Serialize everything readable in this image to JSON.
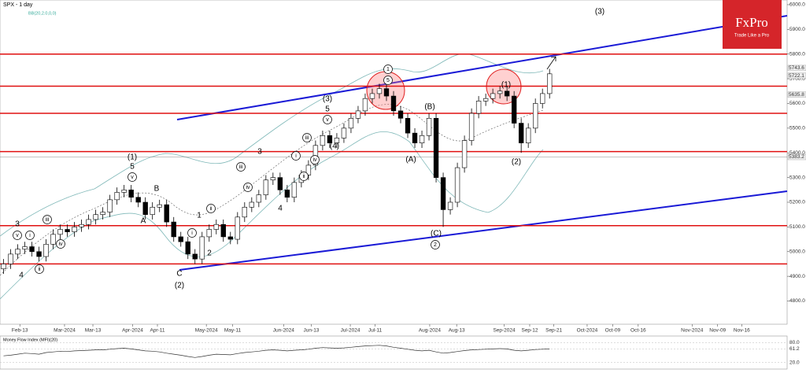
{
  "chart_data": {
    "type": "candlestick",
    "title": "SPX - 1 day",
    "subtitle": "BB(20,2.0,0,0)",
    "logo": {
      "brand": "FxPro",
      "tagline": "Trade Like a Pro"
    },
    "xlim": [
      0,
      111
    ],
    "xticks": [
      {
        "value": 2.8,
        "label": "Feb-13"
      },
      {
        "value": 9.1,
        "label": "Mar-2024"
      },
      {
        "value": 13.1,
        "label": "Mar-13"
      },
      {
        "value": 18.7,
        "label": "Apr-2024"
      },
      {
        "value": 22.2,
        "label": "Apr-11"
      },
      {
        "value": 29.1,
        "label": "May-2024"
      },
      {
        "value": 32.8,
        "label": "May-11"
      },
      {
        "value": 40,
        "label": "Jun-2024"
      },
      {
        "value": 43.9,
        "label": "Jun-13"
      },
      {
        "value": 49.4,
        "label": "Jul-2024"
      },
      {
        "value": 52.9,
        "label": "Jul-11"
      },
      {
        "value": 60.6,
        "label": "Aug-2024"
      },
      {
        "value": 64.4,
        "label": "Aug-13"
      },
      {
        "value": 71.1,
        "label": "Sep-2024"
      },
      {
        "value": 74.7,
        "label": "Sep-12"
      },
      {
        "value": 78.1,
        "label": "Sep-21"
      },
      {
        "value": 82.8,
        "label": "Oct-2024"
      },
      {
        "value": 86.4,
        "label": "Oct-09"
      },
      {
        "value": 90,
        "label": "Oct-16"
      },
      {
        "value": 97.6,
        "label": "Nov-2024"
      },
      {
        "value": 101.2,
        "label": "Nov-09"
      },
      {
        "value": 104.6,
        "label": "Nov-16"
      }
    ],
    "ylim": [
      4706,
      6019
    ],
    "yticks": [
      {
        "value": 4800,
        "label": "4800.0"
      },
      {
        "value": 4900,
        "label": "4900.0"
      },
      {
        "value": 5000,
        "label": "5000.0"
      },
      {
        "value": 5100,
        "label": "5100.0"
      },
      {
        "value": 5200,
        "label": "5200.0"
      },
      {
        "value": 5300,
        "label": "5300.0"
      },
      {
        "value": 5400,
        "label": "5400.0"
      },
      {
        "value": 5500,
        "label": "5500.0"
      },
      {
        "value": 5600,
        "label": "5600.0"
      },
      {
        "value": 5700,
        "label": "5700.0"
      },
      {
        "value": 5800,
        "label": "5800.0"
      },
      {
        "value": 5900,
        "label": "5900.0"
      },
      {
        "value": 6000,
        "label": "6000.0"
      }
    ],
    "price_tags": [
      5743.6,
      5722.1,
      5635.8,
      5383.2
    ],
    "levels": [
      5800,
      5670,
      5560,
      5405,
      5105,
      4950
    ],
    "open": [
      4930,
      4950,
      4990,
      5010,
      5020,
      5000,
      4980,
      5030,
      5070,
      5090,
      5080,
      5100,
      5110,
      5130,
      5150,
      5160,
      5210,
      5240,
      5250,
      5220,
      5200,
      5150,
      5180,
      5190,
      5120,
      5060,
      5040,
      4990,
      4970,
      5060,
      5090,
      5110,
      5060,
      5050,
      5140,
      5180,
      5200,
      5230,
      5290,
      5300,
      5250,
      5220,
      5280,
      5310,
      5350,
      5430,
      5470,
      5440,
      5460,
      5500,
      5540,
      5570,
      5620,
      5640,
      5660,
      5630,
      5570,
      5540,
      5480,
      5440,
      5470,
      5540,
      5300,
      5170,
      5200,
      5340,
      5450,
      5560,
      5610,
      5620,
      5640,
      5650,
      5630,
      5520,
      5440,
      5500,
      5600,
      5640
    ],
    "high": [
      4970,
      5010,
      5030,
      5040,
      5040,
      5020,
      5050,
      5090,
      5110,
      5110,
      5120,
      5130,
      5150,
      5170,
      5180,
      5230,
      5260,
      5270,
      5270,
      5240,
      5220,
      5200,
      5210,
      5210,
      5140,
      5080,
      5060,
      5010,
      5080,
      5110,
      5130,
      5130,
      5080,
      5160,
      5200,
      5220,
      5250,
      5310,
      5320,
      5320,
      5270,
      5300,
      5330,
      5370,
      5450,
      5490,
      5490,
      5480,
      5520,
      5560,
      5590,
      5640,
      5660,
      5680,
      5680,
      5650,
      5590,
      5560,
      5500,
      5490,
      5560,
      5560,
      5320,
      5220,
      5360,
      5470,
      5580,
      5630,
      5640,
      5660,
      5670,
      5670,
      5650,
      5540,
      5520,
      5620,
      5660,
      5740
    ],
    "low": [
      4910,
      4930,
      4970,
      4990,
      4980,
      4960,
      4960,
      5010,
      5050,
      5060,
      5060,
      5080,
      5090,
      5110,
      5130,
      5140,
      5190,
      5220,
      5200,
      5180,
      5130,
      5130,
      5160,
      5100,
      5040,
      5020,
      4970,
      4950,
      4950,
      5040,
      5070,
      5040,
      5030,
      5030,
      5120,
      5160,
      5180,
      5210,
      5270,
      5230,
      5200,
      5200,
      5260,
      5290,
      5330,
      5410,
      5420,
      5420,
      5440,
      5480,
      5520,
      5550,
      5600,
      5620,
      5610,
      5550,
      5520,
      5460,
      5420,
      5420,
      5450,
      5280,
      5100,
      5150,
      5180,
      5320,
      5430,
      5540,
      5590,
      5600,
      5620,
      5610,
      5500,
      5400,
      5420,
      5480,
      5580,
      5620
    ],
    "close": [
      4950,
      4990,
      5010,
      5020,
      5000,
      4980,
      5030,
      5070,
      5090,
      5080,
      5100,
      5110,
      5130,
      5150,
      5160,
      5210,
      5240,
      5250,
      5220,
      5200,
      5150,
      5180,
      5190,
      5120,
      5060,
      5040,
      4990,
      4970,
      5060,
      5090,
      5110,
      5060,
      5050,
      5140,
      5180,
      5200,
      5230,
      5290,
      5300,
      5250,
      5220,
      5280,
      5310,
      5350,
      5430,
      5470,
      5440,
      5460,
      5500,
      5540,
      5570,
      5620,
      5640,
      5660,
      5630,
      5570,
      5540,
      5480,
      5440,
      5470,
      5540,
      5300,
      5170,
      5200,
      5340,
      5450,
      5560,
      5610,
      5620,
      5640,
      5650,
      5630,
      5520,
      5440,
      5500,
      5600,
      5640,
      5720
    ],
    "annotations": [
      "3",
      "v",
      "4",
      "i",
      "ii",
      "iii",
      "iv",
      "(1)",
      "5",
      "v",
      "A",
      "B",
      "C",
      "(2)",
      "1",
      "2",
      "i",
      "ii",
      "iii",
      "iv",
      "3",
      "4",
      "(3)",
      "5",
      "v",
      "(4)",
      "i",
      "ii",
      "iii",
      "iv",
      "1",
      "5",
      "(A)",
      "(B)",
      "(C)",
      "2",
      "(1)",
      "(2)",
      "(3)"
    ],
    "indicator": {
      "title": "Money Flow Index (MFI)(20)",
      "ylim": [
        0,
        100
      ],
      "yticks": [
        {
          "value": 80,
          "label": "80.0"
        },
        {
          "value": 61.2,
          "label": "61.2"
        },
        {
          "value": 20,
          "label": "20.0"
        }
      ],
      "values": [
        40,
        42,
        45,
        48,
        47,
        45,
        50,
        52,
        54,
        53,
        55,
        56,
        57,
        58,
        58,
        60,
        62,
        63,
        61,
        58,
        55,
        54,
        52,
        48,
        45,
        42,
        38,
        35,
        38,
        42,
        45,
        44,
        43,
        47,
        50,
        52,
        54,
        57,
        58,
        57,
        55,
        57,
        58,
        60,
        63,
        65,
        64,
        63,
        64,
        66,
        68,
        70,
        71,
        72,
        70,
        66,
        63,
        60,
        57,
        55,
        57,
        52,
        48,
        50,
        53,
        56,
        58,
        59,
        60,
        61,
        62,
        61,
        57,
        55,
        57,
        59,
        60,
        61
      ]
    }
  }
}
